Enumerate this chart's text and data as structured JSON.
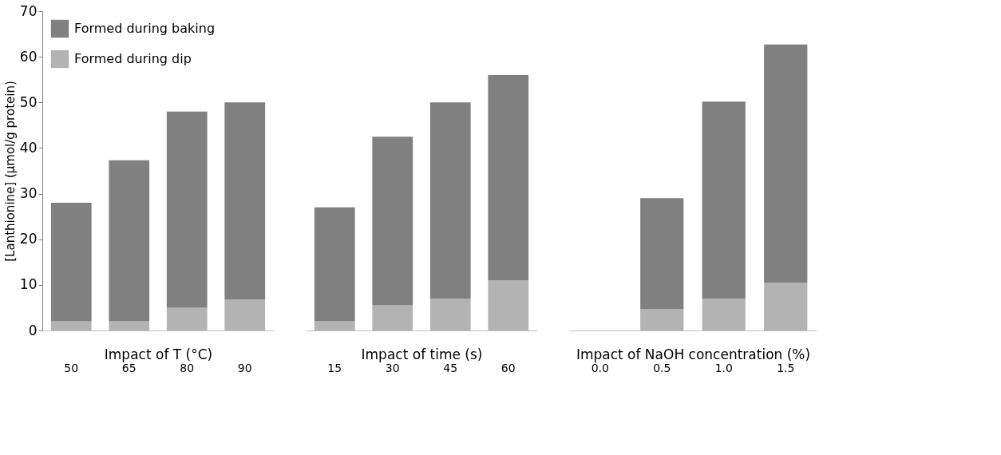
{
  "chart_data": [
    {
      "type": "bar",
      "stacked": true,
      "xlabel": "Impact of T (°C)",
      "ylabel": "[Lanthionine] (µmol/g protein)",
      "categories": [
        "50",
        "65",
        "80",
        "90"
      ],
      "ylim": [
        0,
        70
      ],
      "yticks": [
        0,
        10,
        20,
        30,
        40,
        50,
        60,
        70
      ],
      "grid": false,
      "legend": "top left",
      "series": [
        {
          "name": "Formed during dip",
          "color": "#b3b3b3",
          "values": [
            2,
            2,
            5,
            6.8
          ]
        },
        {
          "name": "Formed during baking",
          "color": "#808080",
          "values": [
            26,
            35.3,
            43,
            43.2
          ]
        }
      ]
    },
    {
      "type": "bar",
      "stacked": true,
      "xlabel": "Impact of time (s)",
      "categories": [
        "15",
        "30",
        "45",
        "60"
      ],
      "ylim": [
        0,
        70
      ],
      "tick_labels": "x",
      "grid": false,
      "series": [
        {
          "color": "#b3b3b3",
          "values": [
            2,
            5.5,
            7,
            11
          ]
        },
        {
          "color": "#808080",
          "values": [
            25,
            37,
            43,
            45
          ]
        }
      ]
    },
    {
      "type": "bar",
      "stacked": true,
      "xlabel": "Impact of NaOH concentration (%)",
      "categories": [
        "0.0",
        "0.5",
        "1.0",
        "1.5"
      ],
      "ylim": [
        0,
        70
      ],
      "tick_labels": "x",
      "grid": false,
      "series": [
        {
          "color": "#b3b3b3",
          "values": [
            0,
            4.7,
            7,
            10.5
          ]
        },
        {
          "color": "#808080",
          "values": [
            0,
            24.3,
            43.2,
            52.2
          ]
        }
      ]
    }
  ]
}
